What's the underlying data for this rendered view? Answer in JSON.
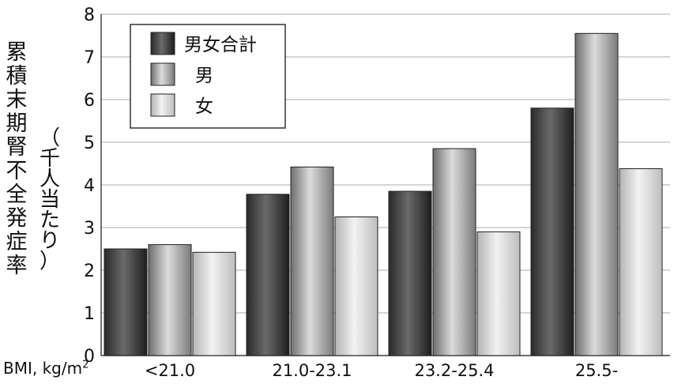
{
  "chart_data": {
    "type": "bar",
    "title": "",
    "ylabel": "累積末期腎不全発症率",
    "ylabel_unit": "（千人当たり）",
    "xlabel": "BMI, kg/m",
    "xlabel_sup": "2",
    "categories": [
      "<21.0",
      "21.0-23.1",
      "23.2-25.4",
      "25.5-"
    ],
    "series": [
      {
        "name": "男女合計",
        "values": [
          2.5,
          3.78,
          3.85,
          5.8
        ],
        "color": "#3a3a3a"
      },
      {
        "name": "男",
        "values": [
          2.6,
          4.42,
          4.85,
          7.55
        ],
        "color": "#8c8c8c"
      },
      {
        "name": "女",
        "values": [
          2.42,
          3.25,
          2.9,
          4.38
        ],
        "color": "#cfcfcf"
      }
    ],
    "ylim": [
      0,
      8
    ],
    "yticks": [
      0,
      1,
      2,
      3,
      4,
      5,
      6,
      7,
      8
    ],
    "grid": true,
    "legend_position": "top-left"
  }
}
